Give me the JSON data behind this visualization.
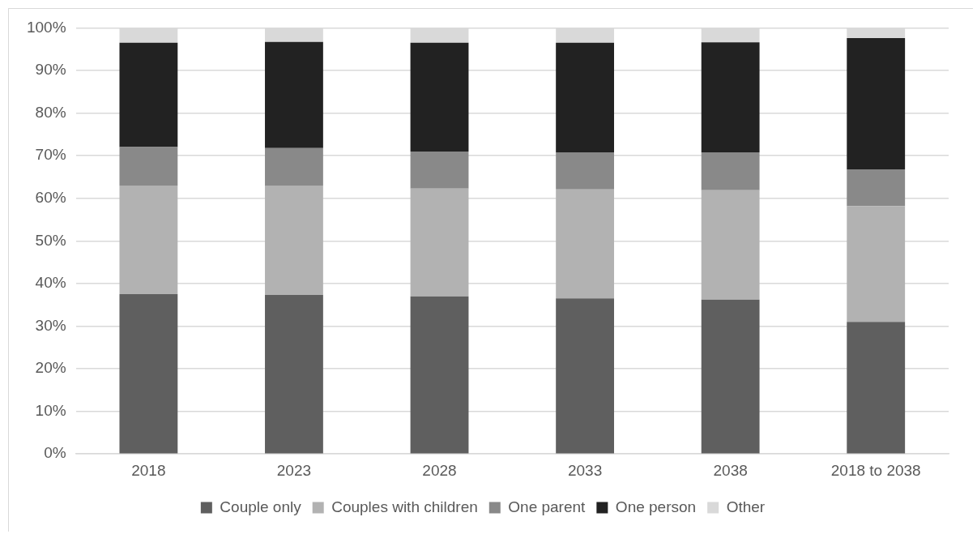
{
  "chart_data": {
    "type": "bar",
    "stacked": true,
    "categories": [
      "2018",
      "2023",
      "2028",
      "2033",
      "2038",
      "2018 to 2038"
    ],
    "series": [
      {
        "name": "Couple only",
        "color": "#5f5f5f",
        "values": [
          37.5,
          37.3,
          37,
          36.5,
          36.2,
          31.0
        ]
      },
      {
        "name": "Couples with children",
        "color": "#b2b2b2",
        "values": [
          25.5,
          25.7,
          25.3,
          25.6,
          25.7,
          27.2
        ]
      },
      {
        "name": "One parent",
        "color": "#898989",
        "values": [
          9,
          8.8,
          8.7,
          8.7,
          8.9,
          8.6
        ]
      },
      {
        "name": "One person",
        "color": "#222222",
        "values": [
          24.5,
          24.9,
          25.5,
          25.7,
          25.8,
          30.8
        ]
      },
      {
        "name": "Other",
        "color": "#d9d9d9",
        "values": [
          3.5,
          3.3,
          3.5,
          3.5,
          3.4,
          2.4
        ]
      }
    ],
    "ylim": [
      0,
      100
    ],
    "yticks": [
      {
        "value": 0,
        "label": "0%"
      },
      {
        "value": 10,
        "label": "10%"
      },
      {
        "value": 20,
        "label": "20%"
      },
      {
        "value": 30,
        "label": "30%"
      },
      {
        "value": 40,
        "label": "40%"
      },
      {
        "value": 50,
        "label": "50%"
      },
      {
        "value": 60,
        "label": "60%"
      },
      {
        "value": 70,
        "label": "70%"
      },
      {
        "value": 80,
        "label": "80%"
      },
      {
        "value": 90,
        "label": "90%"
      },
      {
        "value": 100,
        "label": "100%"
      }
    ],
    "grid": "y",
    "legend": "bottom"
  }
}
